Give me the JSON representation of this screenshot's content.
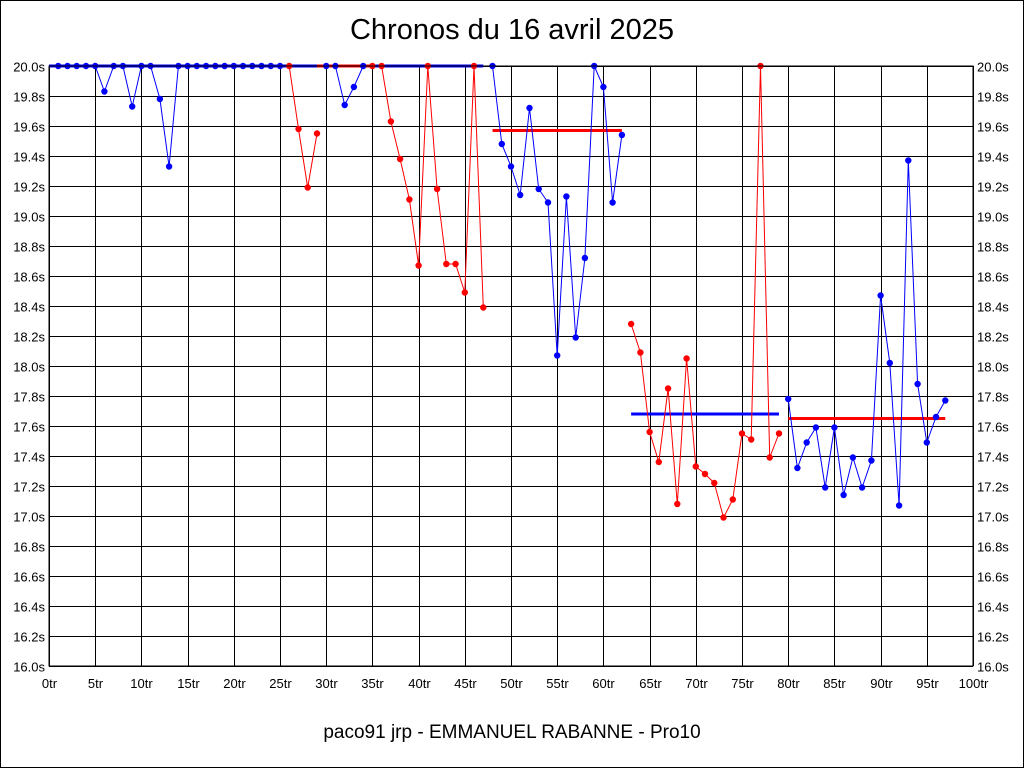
{
  "chart_data": {
    "type": "line",
    "title": "Chronos du 16 avril 2025",
    "footer": "paco91 jrp - EMMANUEL RABANNE - Pro10",
    "xlim": [
      0,
      100
    ],
    "ylim": [
      16.0,
      20.0
    ],
    "x_ticks": [
      "0tr",
      "5tr",
      "10tr",
      "15tr",
      "20tr",
      "25tr",
      "30tr",
      "35tr",
      "40tr",
      "45tr",
      "50tr",
      "55tr",
      "60tr",
      "65tr",
      "70tr",
      "75tr",
      "80tr",
      "85tr",
      "90tr",
      "95tr",
      "100tr"
    ],
    "y_ticks": [
      "20.0s",
      "19.8s",
      "19.6s",
      "19.4s",
      "19.2s",
      "19.0s",
      "18.8s",
      "18.6s",
      "18.4s",
      "18.2s",
      "18.0s",
      "17.8s",
      "17.6s",
      "17.4s",
      "17.2s",
      "17.0s",
      "16.8s",
      "16.6s",
      "16.4s",
      "16.2s",
      "16.0s"
    ],
    "y_ticks_right": [
      "20.0s",
      "19.8s",
      "19.6s",
      "19.4s",
      "19.2s",
      "19.0s",
      "18.8s",
      "18.6s",
      "18.4s",
      "18.2s",
      "18.0s",
      "17.8s",
      "17.6s",
      "17.4s",
      "17.2s",
      "17.0s",
      "16.8s",
      "16.6s",
      "16.4s",
      "16.2s",
      "16.0s"
    ],
    "grid": true,
    "colors": {
      "blue": "#0000ff",
      "red": "#ff0000"
    },
    "series": [
      {
        "color": "#0000ff",
        "points": [
          [
            1,
            20.0
          ],
          [
            2,
            20.0
          ],
          [
            3,
            20.0
          ],
          [
            4,
            20.0
          ],
          [
            5,
            20.0
          ],
          [
            6,
            19.83
          ],
          [
            7,
            20.0
          ],
          [
            8,
            20.0
          ],
          [
            9,
            19.73
          ],
          [
            10,
            20.0
          ],
          [
            11,
            20.0
          ],
          [
            12,
            19.78
          ],
          [
            13,
            19.33
          ],
          [
            14,
            20.0
          ],
          [
            15,
            20.0
          ],
          [
            16,
            20.0
          ],
          [
            17,
            20.0
          ],
          [
            18,
            20.0
          ],
          [
            19,
            20.0
          ],
          [
            20,
            20.0
          ],
          [
            21,
            20.0
          ],
          [
            22,
            20.0
          ],
          [
            23,
            20.0
          ],
          [
            24,
            20.0
          ],
          [
            25,
            20.0
          ]
        ]
      },
      {
        "color": "#ff0000",
        "points": [
          [
            26,
            20.0
          ],
          [
            27,
            19.58
          ],
          [
            28,
            19.19
          ],
          [
            29,
            19.55
          ]
        ]
      },
      {
        "color": "#0000ff",
        "points": [
          [
            30,
            20.0
          ],
          [
            31,
            20.0
          ],
          [
            32,
            19.74
          ],
          [
            33,
            19.86
          ],
          [
            34,
            20.0
          ]
        ]
      },
      {
        "color": "#ff0000",
        "points": [
          [
            35,
            20.0
          ],
          [
            36,
            20.0
          ],
          [
            37,
            19.63
          ],
          [
            38,
            19.38
          ],
          [
            39,
            19.11
          ],
          [
            40,
            18.67
          ],
          [
            41,
            20.0
          ],
          [
            42,
            19.18
          ],
          [
            43,
            18.68
          ],
          [
            44,
            18.68
          ],
          [
            45,
            18.49
          ],
          [
            46,
            20.0
          ],
          [
            47,
            18.39
          ]
        ]
      },
      {
        "color": "#0000ff",
        "points": [
          [
            48,
            20.0
          ],
          [
            49,
            19.48
          ],
          [
            50,
            19.33
          ],
          [
            51,
            19.14
          ],
          [
            52,
            19.72
          ],
          [
            53,
            19.18
          ],
          [
            54,
            19.09
          ],
          [
            55,
            18.07
          ],
          [
            56,
            19.13
          ],
          [
            57,
            18.19
          ],
          [
            58,
            18.72
          ],
          [
            59,
            20.0
          ],
          [
            60,
            19.86
          ],
          [
            61,
            19.09
          ],
          [
            62,
            19.54
          ]
        ]
      },
      {
        "color": "#ff0000",
        "points": [
          [
            63,
            18.28
          ],
          [
            64,
            18.09
          ],
          [
            65,
            17.56
          ],
          [
            66,
            17.36
          ],
          [
            67,
            17.85
          ],
          [
            68,
            17.08
          ],
          [
            69,
            18.05
          ],
          [
            70,
            17.33
          ],
          [
            71,
            17.28
          ],
          [
            72,
            17.22
          ],
          [
            73,
            16.99
          ],
          [
            74,
            17.11
          ],
          [
            75,
            17.55
          ],
          [
            76,
            17.51
          ],
          [
            77,
            20.0
          ],
          [
            78,
            17.39
          ],
          [
            79,
            17.55
          ]
        ]
      },
      {
        "color": "#0000ff",
        "points": [
          [
            80,
            17.78
          ],
          [
            81,
            17.32
          ],
          [
            82,
            17.49
          ],
          [
            83,
            17.59
          ],
          [
            84,
            17.19
          ],
          [
            85,
            17.59
          ],
          [
            86,
            17.14
          ],
          [
            87,
            17.39
          ],
          [
            88,
            17.19
          ],
          [
            89,
            17.37
          ],
          [
            90,
            18.47
          ],
          [
            91,
            18.02
          ],
          [
            92,
            17.07
          ],
          [
            93,
            19.37
          ],
          [
            94,
            17.88
          ],
          [
            95,
            17.49
          ],
          [
            96,
            17.66
          ],
          [
            97,
            17.77
          ]
        ]
      }
    ],
    "average_lines": [
      {
        "color": "#ff0000",
        "x": [
          0,
          29
        ],
        "y": 20.0
      },
      {
        "color": "#0000ff",
        "x": [
          0,
          29
        ],
        "y": 20.0
      },
      {
        "color": "#ff0000",
        "x": [
          29,
          35
        ],
        "y": 20.0
      },
      {
        "color": "#0000ff",
        "x": [
          35,
          47
        ],
        "y": 20.0
      },
      {
        "color": "#ff0000",
        "x": [
          48,
          62
        ],
        "y": 19.57
      },
      {
        "color": "#0000ff",
        "x": [
          63,
          79
        ],
        "y": 17.68
      },
      {
        "color": "#ff0000",
        "x": [
          80,
          97
        ],
        "y": 17.65
      }
    ]
  }
}
